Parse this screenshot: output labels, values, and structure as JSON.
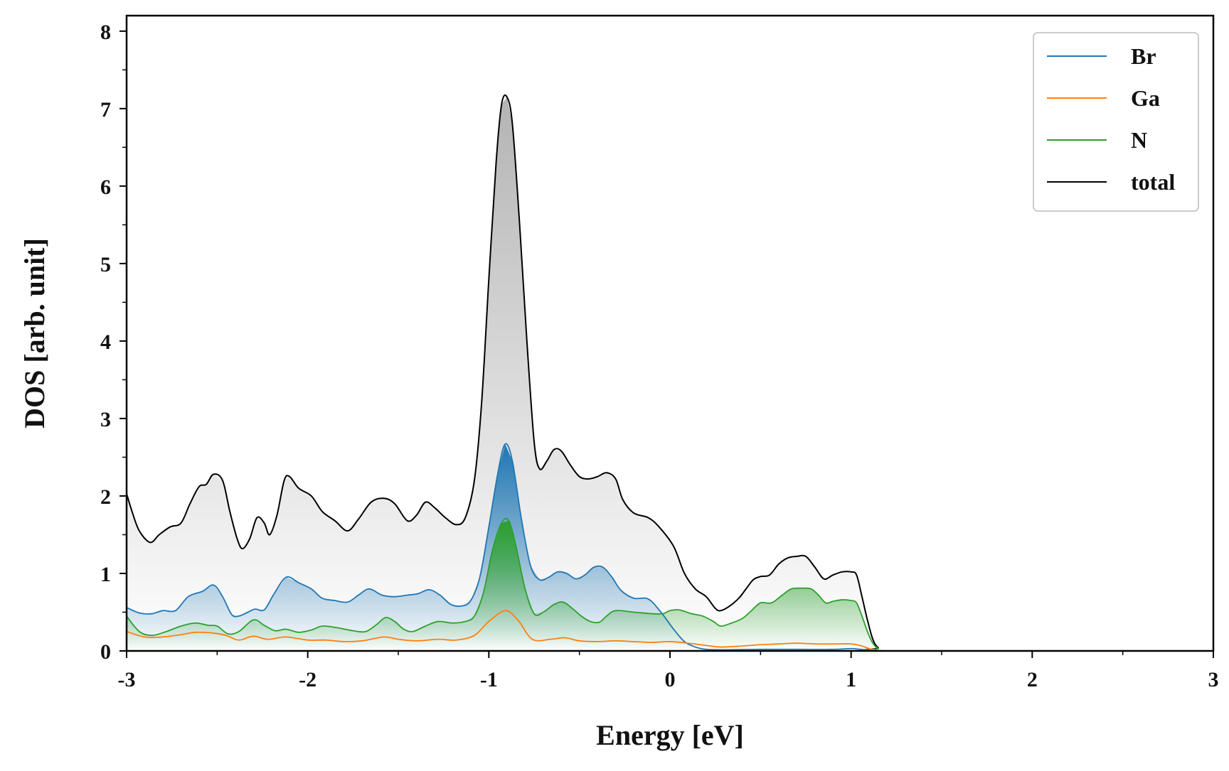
{
  "chart_data": {
    "type": "area",
    "xlabel": "Energy [eV]",
    "ylabel": "DOS [arb. unit]",
    "xlim": [
      -3,
      3
    ],
    "ylim": [
      0,
      8.2
    ],
    "x_ticks": [
      -3,
      -2,
      -1,
      0,
      1,
      2,
      3
    ],
    "x_tick_labels": [
      "-3",
      "-2",
      "-1",
      "0",
      "1",
      "2",
      "3"
    ],
    "y_ticks": [
      0,
      1,
      2,
      3,
      4,
      5,
      6,
      7,
      8
    ],
    "y_tick_labels": [
      "0",
      "1",
      "2",
      "3",
      "4",
      "5",
      "6",
      "7",
      "8"
    ],
    "grid": false,
    "legend_position": "top-right",
    "series": [
      {
        "name": "Br",
        "color": "#1f77b4",
        "points": [
          [
            -3.0,
            0.56
          ],
          [
            -2.93,
            0.49
          ],
          [
            -2.86,
            0.48
          ],
          [
            -2.8,
            0.52
          ],
          [
            -2.73,
            0.52
          ],
          [
            -2.66,
            0.7
          ],
          [
            -2.58,
            0.77
          ],
          [
            -2.52,
            0.85
          ],
          [
            -2.47,
            0.7
          ],
          [
            -2.42,
            0.47
          ],
          [
            -2.38,
            0.45
          ],
          [
            -2.33,
            0.5
          ],
          [
            -2.29,
            0.54
          ],
          [
            -2.24,
            0.53
          ],
          [
            -2.19,
            0.72
          ],
          [
            -2.12,
            0.95
          ],
          [
            -2.05,
            0.88
          ],
          [
            -1.98,
            0.8
          ],
          [
            -1.92,
            0.68
          ],
          [
            -1.85,
            0.65
          ],
          [
            -1.78,
            0.63
          ],
          [
            -1.72,
            0.72
          ],
          [
            -1.66,
            0.8
          ],
          [
            -1.59,
            0.72
          ],
          [
            -1.52,
            0.7
          ],
          [
            -1.45,
            0.72
          ],
          [
            -1.39,
            0.74
          ],
          [
            -1.33,
            0.79
          ],
          [
            -1.27,
            0.72
          ],
          [
            -1.21,
            0.6
          ],
          [
            -1.15,
            0.58
          ],
          [
            -1.1,
            0.65
          ],
          [
            -1.05,
            0.95
          ],
          [
            -1.0,
            1.6
          ],
          [
            -0.95,
            2.3
          ],
          [
            -0.91,
            2.67
          ],
          [
            -0.87,
            2.45
          ],
          [
            -0.82,
            1.7
          ],
          [
            -0.77,
            1.1
          ],
          [
            -0.72,
            0.92
          ],
          [
            -0.67,
            0.95
          ],
          [
            -0.62,
            1.02
          ],
          [
            -0.57,
            1.0
          ],
          [
            -0.52,
            0.93
          ],
          [
            -0.47,
            0.98
          ],
          [
            -0.42,
            1.08
          ],
          [
            -0.37,
            1.08
          ],
          [
            -0.32,
            0.95
          ],
          [
            -0.27,
            0.78
          ],
          [
            -0.2,
            0.68
          ],
          [
            -0.12,
            0.67
          ],
          [
            -0.05,
            0.5
          ],
          [
            0.02,
            0.28
          ],
          [
            0.08,
            0.12
          ],
          [
            0.14,
            0.05
          ],
          [
            0.2,
            0.02
          ],
          [
            0.3,
            0.015
          ],
          [
            0.5,
            0.02
          ],
          [
            0.7,
            0.02
          ],
          [
            0.9,
            0.02
          ],
          [
            1.0,
            0.03
          ],
          [
            1.05,
            0.02
          ],
          [
            1.1,
            0.01
          ],
          [
            1.15,
            0.0
          ],
          [
            1.2,
            0.0
          ],
          [
            3.0,
            0.0
          ]
        ]
      },
      {
        "name": "Ga",
        "color": "#ff7f0e",
        "points": [
          [
            -3.0,
            0.25
          ],
          [
            -2.9,
            0.18
          ],
          [
            -2.8,
            0.18
          ],
          [
            -2.7,
            0.21
          ],
          [
            -2.62,
            0.24
          ],
          [
            -2.52,
            0.23
          ],
          [
            -2.45,
            0.2
          ],
          [
            -2.38,
            0.14
          ],
          [
            -2.3,
            0.19
          ],
          [
            -2.22,
            0.15
          ],
          [
            -2.12,
            0.18
          ],
          [
            -2.0,
            0.14
          ],
          [
            -1.9,
            0.14
          ],
          [
            -1.8,
            0.12
          ],
          [
            -1.7,
            0.13
          ],
          [
            -1.58,
            0.18
          ],
          [
            -1.5,
            0.15
          ],
          [
            -1.4,
            0.13
          ],
          [
            -1.28,
            0.15
          ],
          [
            -1.18,
            0.14
          ],
          [
            -1.08,
            0.2
          ],
          [
            -1.0,
            0.38
          ],
          [
            -0.91,
            0.52
          ],
          [
            -0.84,
            0.4
          ],
          [
            -0.76,
            0.15
          ],
          [
            -0.66,
            0.15
          ],
          [
            -0.58,
            0.17
          ],
          [
            -0.5,
            0.13
          ],
          [
            -0.4,
            0.12
          ],
          [
            -0.3,
            0.13
          ],
          [
            -0.2,
            0.12
          ],
          [
            -0.1,
            0.11
          ],
          [
            0.0,
            0.12
          ],
          [
            0.1,
            0.1
          ],
          [
            0.2,
            0.07
          ],
          [
            0.28,
            0.05
          ],
          [
            0.38,
            0.06
          ],
          [
            0.5,
            0.08
          ],
          [
            0.6,
            0.09
          ],
          [
            0.7,
            0.1
          ],
          [
            0.8,
            0.09
          ],
          [
            0.9,
            0.09
          ],
          [
            1.0,
            0.09
          ],
          [
            1.05,
            0.07
          ],
          [
            1.1,
            0.03
          ],
          [
            1.15,
            0.0
          ],
          [
            1.2,
            0.0
          ],
          [
            3.0,
            0.0
          ]
        ]
      },
      {
        "name": "N",
        "color": "#2ca02c",
        "points": [
          [
            -3.0,
            0.45
          ],
          [
            -2.93,
            0.25
          ],
          [
            -2.86,
            0.2
          ],
          [
            -2.78,
            0.25
          ],
          [
            -2.7,
            0.32
          ],
          [
            -2.62,
            0.36
          ],
          [
            -2.55,
            0.33
          ],
          [
            -2.5,
            0.32
          ],
          [
            -2.44,
            0.22
          ],
          [
            -2.38,
            0.25
          ],
          [
            -2.3,
            0.4
          ],
          [
            -2.24,
            0.33
          ],
          [
            -2.18,
            0.26
          ],
          [
            -2.12,
            0.28
          ],
          [
            -2.05,
            0.24
          ],
          [
            -1.98,
            0.27
          ],
          [
            -1.92,
            0.32
          ],
          [
            -1.84,
            0.3
          ],
          [
            -1.75,
            0.26
          ],
          [
            -1.68,
            0.25
          ],
          [
            -1.62,
            0.34
          ],
          [
            -1.57,
            0.43
          ],
          [
            -1.52,
            0.38
          ],
          [
            -1.47,
            0.28
          ],
          [
            -1.42,
            0.25
          ],
          [
            -1.35,
            0.32
          ],
          [
            -1.28,
            0.38
          ],
          [
            -1.2,
            0.36
          ],
          [
            -1.13,
            0.38
          ],
          [
            -1.08,
            0.45
          ],
          [
            -1.03,
            0.75
          ],
          [
            -0.98,
            1.3
          ],
          [
            -0.93,
            1.65
          ],
          [
            -0.89,
            1.68
          ],
          [
            -0.85,
            1.35
          ],
          [
            -0.8,
            0.8
          ],
          [
            -0.75,
            0.48
          ],
          [
            -0.7,
            0.5
          ],
          [
            -0.64,
            0.6
          ],
          [
            -0.59,
            0.63
          ],
          [
            -0.54,
            0.55
          ],
          [
            -0.49,
            0.45
          ],
          [
            -0.44,
            0.38
          ],
          [
            -0.39,
            0.37
          ],
          [
            -0.35,
            0.45
          ],
          [
            -0.3,
            0.52
          ],
          [
            -0.2,
            0.5
          ],
          [
            -0.1,
            0.48
          ],
          [
            -0.04,
            0.48
          ],
          [
            0.0,
            0.52
          ],
          [
            0.05,
            0.53
          ],
          [
            0.12,
            0.48
          ],
          [
            0.18,
            0.45
          ],
          [
            0.24,
            0.38
          ],
          [
            0.28,
            0.32
          ],
          [
            0.34,
            0.36
          ],
          [
            0.4,
            0.42
          ],
          [
            0.45,
            0.52
          ],
          [
            0.5,
            0.62
          ],
          [
            0.56,
            0.62
          ],
          [
            0.62,
            0.72
          ],
          [
            0.67,
            0.8
          ],
          [
            0.73,
            0.81
          ],
          [
            0.78,
            0.8
          ],
          [
            0.82,
            0.72
          ],
          [
            0.86,
            0.62
          ],
          [
            0.9,
            0.64
          ],
          [
            0.95,
            0.66
          ],
          [
            1.0,
            0.65
          ],
          [
            1.03,
            0.62
          ],
          [
            1.06,
            0.45
          ],
          [
            1.09,
            0.25
          ],
          [
            1.12,
            0.1
          ],
          [
            1.15,
            0.03
          ],
          [
            1.2,
            0.0
          ],
          [
            3.0,
            0.0
          ]
        ]
      },
      {
        "name": "total",
        "color": "#000000",
        "points": [
          [
            -3.0,
            2.03
          ],
          [
            -2.97,
            1.8
          ],
          [
            -2.93,
            1.55
          ],
          [
            -2.87,
            1.4
          ],
          [
            -2.82,
            1.5
          ],
          [
            -2.76,
            1.6
          ],
          [
            -2.7,
            1.65
          ],
          [
            -2.65,
            1.9
          ],
          [
            -2.6,
            2.12
          ],
          [
            -2.56,
            2.15
          ],
          [
            -2.52,
            2.28
          ],
          [
            -2.47,
            2.2
          ],
          [
            -2.43,
            1.8
          ],
          [
            -2.39,
            1.45
          ],
          [
            -2.36,
            1.32
          ],
          [
            -2.32,
            1.45
          ],
          [
            -2.28,
            1.72
          ],
          [
            -2.24,
            1.65
          ],
          [
            -2.21,
            1.5
          ],
          [
            -2.17,
            1.75
          ],
          [
            -2.13,
            2.2
          ],
          [
            -2.1,
            2.25
          ],
          [
            -2.05,
            2.1
          ],
          [
            -1.98,
            2.0
          ],
          [
            -1.92,
            1.8
          ],
          [
            -1.85,
            1.68
          ],
          [
            -1.78,
            1.55
          ],
          [
            -1.72,
            1.7
          ],
          [
            -1.65,
            1.92
          ],
          [
            -1.58,
            1.97
          ],
          [
            -1.52,
            1.9
          ],
          [
            -1.45,
            1.68
          ],
          [
            -1.4,
            1.75
          ],
          [
            -1.35,
            1.92
          ],
          [
            -1.3,
            1.85
          ],
          [
            -1.24,
            1.72
          ],
          [
            -1.18,
            1.63
          ],
          [
            -1.13,
            1.72
          ],
          [
            -1.08,
            2.2
          ],
          [
            -1.04,
            3.2
          ],
          [
            -1.0,
            4.8
          ],
          [
            -0.96,
            6.3
          ],
          [
            -0.93,
            7.05
          ],
          [
            -0.9,
            7.15
          ],
          [
            -0.87,
            6.8
          ],
          [
            -0.83,
            5.5
          ],
          [
            -0.79,
            4.0
          ],
          [
            -0.75,
            2.7
          ],
          [
            -0.72,
            2.35
          ],
          [
            -0.68,
            2.45
          ],
          [
            -0.64,
            2.6
          ],
          [
            -0.6,
            2.58
          ],
          [
            -0.55,
            2.4
          ],
          [
            -0.5,
            2.25
          ],
          [
            -0.45,
            2.22
          ],
          [
            -0.4,
            2.25
          ],
          [
            -0.35,
            2.3
          ],
          [
            -0.3,
            2.22
          ],
          [
            -0.26,
            1.95
          ],
          [
            -0.2,
            1.78
          ],
          [
            -0.12,
            1.72
          ],
          [
            -0.06,
            1.6
          ],
          [
            0.02,
            1.35
          ],
          [
            0.08,
            1.0
          ],
          [
            0.14,
            0.8
          ],
          [
            0.2,
            0.7
          ],
          [
            0.25,
            0.55
          ],
          [
            0.28,
            0.52
          ],
          [
            0.33,
            0.58
          ],
          [
            0.38,
            0.68
          ],
          [
            0.42,
            0.8
          ],
          [
            0.46,
            0.92
          ],
          [
            0.5,
            0.96
          ],
          [
            0.55,
            0.98
          ],
          [
            0.6,
            1.12
          ],
          [
            0.65,
            1.2
          ],
          [
            0.7,
            1.22
          ],
          [
            0.75,
            1.22
          ],
          [
            0.8,
            1.08
          ],
          [
            0.85,
            0.93
          ],
          [
            0.9,
            0.98
          ],
          [
            0.95,
            1.02
          ],
          [
            1.0,
            1.02
          ],
          [
            1.03,
            0.98
          ],
          [
            1.06,
            0.7
          ],
          [
            1.09,
            0.4
          ],
          [
            1.12,
            0.15
          ],
          [
            1.15,
            0.04
          ],
          [
            1.2,
            0.0
          ],
          [
            3.0,
            0.0
          ]
        ]
      }
    ]
  }
}
